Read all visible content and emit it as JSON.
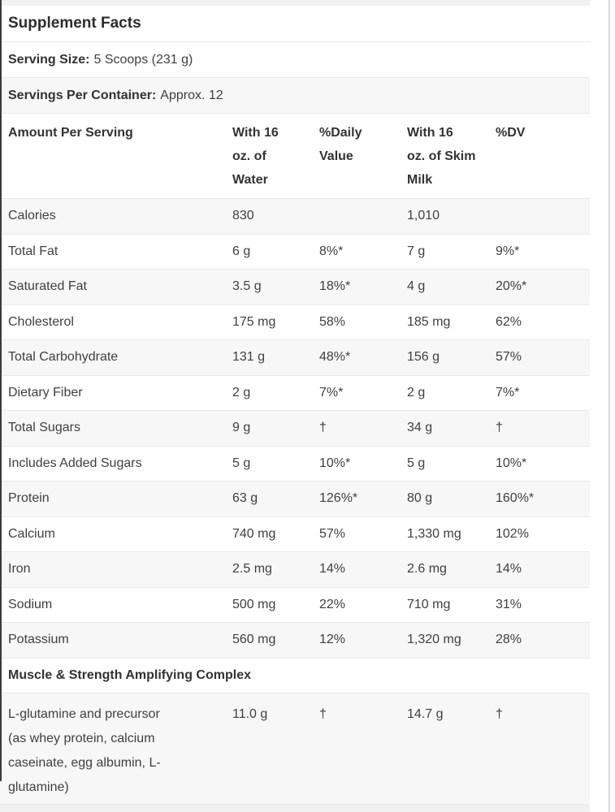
{
  "title": "Supplement Facts",
  "serving_size": {
    "label": "Serving Size:",
    "value": "5 Scoops (231 g)"
  },
  "servings_per_container": {
    "label": "Servings Per Container:",
    "value": "Approx. 12"
  },
  "columns": {
    "amount": "Amount Per Serving",
    "water": "With 16\noz. of\nWater",
    "daily_value": "%Daily\nValue",
    "milk": "With 16\noz. of Skim\nMilk",
    "dv": "%DV"
  },
  "rows": [
    {
      "label": "Calories",
      "water": "830",
      "daily_value": "",
      "milk": "1,010",
      "dv": ""
    },
    {
      "label": "Total Fat",
      "water": "6 g",
      "daily_value": "8%*",
      "milk": "7 g",
      "dv": "9%*"
    },
    {
      "label": "Saturated Fat",
      "water": "3.5 g",
      "daily_value": "18%*",
      "milk": "4 g",
      "dv": "20%*"
    },
    {
      "label": "Cholesterol",
      "water": "175 mg",
      "daily_value": "58%",
      "milk": "185 mg",
      "dv": "62%"
    },
    {
      "label": "Total Carbohydrate",
      "water": "131 g",
      "daily_value": "48%*",
      "milk": "156 g",
      "dv": "57%"
    },
    {
      "label": "Dietary Fiber",
      "water": "2 g",
      "daily_value": "7%*",
      "milk": "2 g",
      "dv": "7%*"
    },
    {
      "label": "Total Sugars",
      "water": "9 g",
      "daily_value": "†",
      "milk": "34 g",
      "dv": "†"
    },
    {
      "label": "Includes Added Sugars",
      "water": "5 g",
      "daily_value": "10%*",
      "milk": "5 g",
      "dv": "10%*"
    },
    {
      "label": "Protein",
      "water": "63 g",
      "daily_value": "126%*",
      "milk": "80 g",
      "dv": "160%*"
    },
    {
      "label": "Calcium",
      "water": "740 mg",
      "daily_value": "57%",
      "milk": "1,330 mg",
      "dv": "102%"
    },
    {
      "label": "Iron",
      "water": "2.5 mg",
      "daily_value": "14%",
      "milk": "2.6 mg",
      "dv": "14%"
    },
    {
      "label": "Sodium",
      "water": "500 mg",
      "daily_value": "22%",
      "milk": "710 mg",
      "dv": "31%"
    },
    {
      "label": "Potassium",
      "water": "560 mg",
      "daily_value": "12%",
      "milk": "1,320 mg",
      "dv": "28%"
    }
  ],
  "section": {
    "header": "Muscle & Strength Amplifying Complex",
    "rows": [
      {
        "label": "L-glutamine and precursor\n(as whey protein, calcium\ncaseinate, egg albumin, L-\nglutamine)",
        "water": "11.0 g",
        "daily_value": "†",
        "milk": "14.7 g",
        "dv": "†"
      }
    ]
  },
  "colors": {
    "row_alt": "#f7f7f7",
    "border": "#e9e9e9",
    "text": "#3f3f3f",
    "accent_bar": "#3a3a3a"
  }
}
